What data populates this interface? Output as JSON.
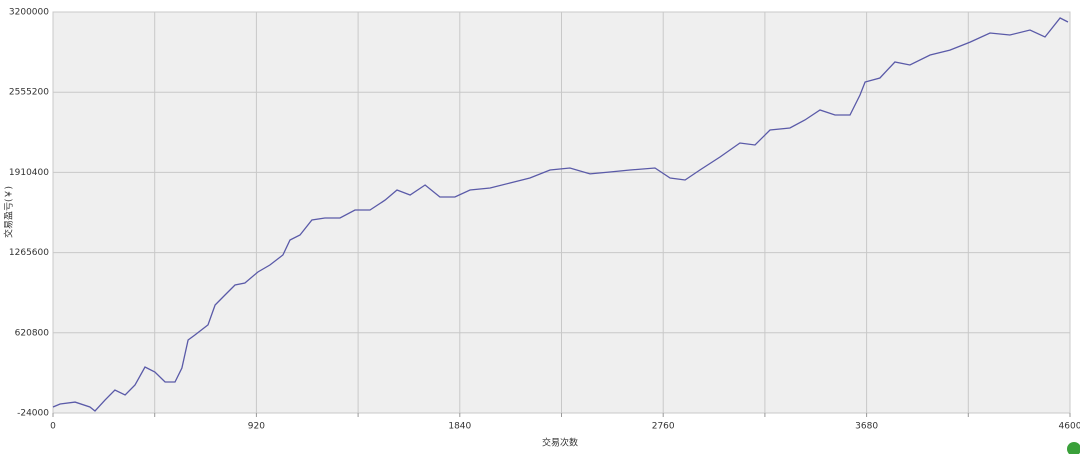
{
  "chart_data": {
    "type": "line",
    "x_label": "交易次数",
    "y_label": "交易盈亏(￥)",
    "x": [
      0,
      32,
      100,
      167,
      190,
      235,
      280,
      326,
      371,
      416,
      461,
      507,
      552,
      583,
      611,
      642,
      701,
      733,
      778,
      823,
      868,
      927,
      981,
      1040,
      1072,
      1117,
      1171,
      1230,
      1298,
      1366,
      1434,
      1502,
      1556,
      1615,
      1683,
      1750,
      1818,
      1886,
      1977,
      2067,
      2157,
      2248,
      2338,
      2429,
      2519,
      2610,
      2723,
      2791,
      2859,
      2926,
      3017,
      3107,
      3175,
      3243,
      3333,
      3401,
      3469,
      3537,
      3605,
      3650,
      3673,
      3740,
      3808,
      3876,
      3967,
      4057,
      4148,
      4238,
      4328,
      4419,
      4487,
      4555,
      4591
    ],
    "series": [
      {
        "color": "#5a5aa8",
        "values": [
          24000,
          48000,
          64000,
          24000,
          -8000,
          80000,
          161000,
          121000,
          201000,
          346000,
          306000,
          225000,
          225000,
          338000,
          563000,
          603000,
          684000,
          844000,
          925000,
          1005000,
          1021000,
          1110000,
          1166000,
          1246000,
          1367000,
          1407000,
          1528000,
          1544000,
          1544000,
          1608000,
          1608000,
          1688000,
          1769000,
          1729000,
          1809000,
          1713000,
          1713000,
          1769000,
          1785000,
          1825000,
          1865000,
          1930000,
          1946000,
          1898000,
          1914000,
          1930000,
          1946000,
          1865000,
          1849000,
          1930000,
          2034000,
          2147000,
          2131000,
          2251000,
          2267000,
          2332000,
          2412000,
          2372000,
          2372000,
          2533000,
          2637000,
          2669000,
          2798000,
          2774000,
          2854000,
          2894000,
          2958000,
          3031000,
          3015000,
          3055000,
          2999000,
          3152000,
          3120000
        ]
      }
    ],
    "xlim": [
      0,
      4600
    ],
    "xticks": [
      0,
      920,
      1840,
      2760,
      3680,
      4600
    ],
    "x_minor_ticks": [
      460,
      1380,
      2300,
      3220,
      4140
    ],
    "ylim": [
      -24000,
      3200000
    ],
    "yticks": [
      -24000,
      620800,
      1265600,
      1910400,
      2555200,
      3200000
    ],
    "grid": true
  }
}
